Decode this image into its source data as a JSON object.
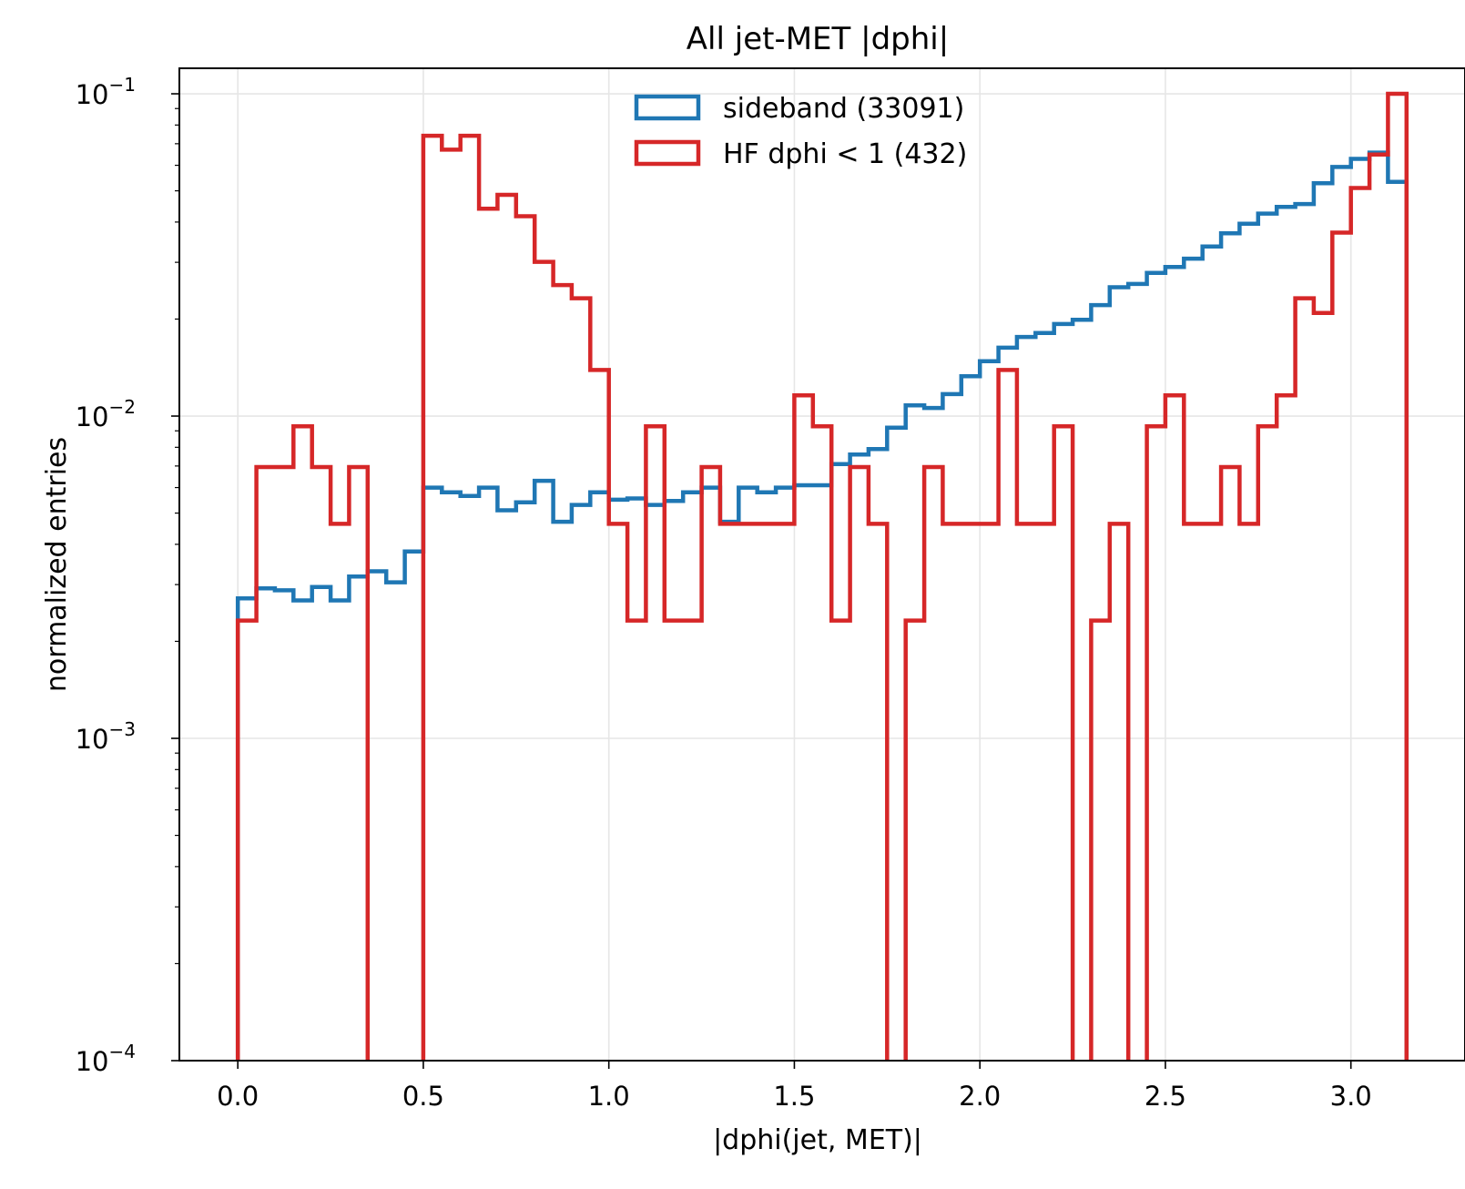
{
  "chart_data": {
    "type": "histogram-step",
    "title": "All jet-MET |dphi|",
    "xlabel": "|dphi(jet, MET)|",
    "ylabel": "normalized entries",
    "yscale": "log",
    "xlim": [
      -0.1575,
      3.3075
    ],
    "ylim": [
      0.0001,
      0.12
    ],
    "grid": true,
    "legend_position": "upper center",
    "bin_width": 0.05,
    "bin_start": 0.0,
    "x_ticks": [
      {
        "value": 0.0,
        "label": "0.0"
      },
      {
        "value": 0.5,
        "label": "0.5"
      },
      {
        "value": 1.0,
        "label": "1.0"
      },
      {
        "value": 1.5,
        "label": "1.5"
      },
      {
        "value": 2.0,
        "label": "2.0"
      },
      {
        "value": 2.5,
        "label": "2.5"
      },
      {
        "value": 3.0,
        "label": "3.0"
      }
    ],
    "y_ticks": [
      {
        "value": 0.1,
        "base": "10",
        "exp": "−1"
      },
      {
        "value": 0.01,
        "base": "10",
        "exp": "−2"
      },
      {
        "value": 0.001,
        "base": "10",
        "exp": "−3"
      },
      {
        "value": 0.0001,
        "base": "10",
        "exp": "−4"
      }
    ],
    "series": [
      {
        "name": "sideband (33091)",
        "color": "#1f77b4",
        "values": [
          0.00272,
          0.00292,
          0.00288,
          0.00268,
          0.00295,
          0.00268,
          0.00318,
          0.0033,
          0.00305,
          0.0038,
          0.006,
          0.0058,
          0.00565,
          0.006,
          0.0051,
          0.0054,
          0.0063,
          0.0047,
          0.0053,
          0.0058,
          0.0055,
          0.00555,
          0.0053,
          0.00545,
          0.0058,
          0.006,
          0.0047,
          0.006,
          0.0058,
          0.006,
          0.0061,
          0.0061,
          0.0071,
          0.0076,
          0.0079,
          0.0092,
          0.0108,
          0.0106,
          0.0117,
          0.0133,
          0.0148,
          0.0163,
          0.0176,
          0.0181,
          0.0193,
          0.0199,
          0.0221,
          0.0251,
          0.0257,
          0.0278,
          0.029,
          0.0308,
          0.0336,
          0.0369,
          0.0395,
          0.0425,
          0.0446,
          0.0455,
          0.0528,
          0.0593,
          0.0628,
          0.0657,
          0.0533
        ]
      },
      {
        "name": "HF dphi < 1 (432)",
        "color": "#d62728",
        "values": [
          0.00232,
          0.00695,
          0.00695,
          0.0093,
          0.00695,
          0.00463,
          0.00695,
          0.0,
          0.0,
          0.0,
          0.0741,
          0.0671,
          0.0741,
          0.044,
          0.0486,
          0.0417,
          0.0301,
          0.0255,
          0.0232,
          0.0139,
          0.00463,
          0.00232,
          0.0093,
          0.00232,
          0.00232,
          0.00695,
          0.00463,
          0.00463,
          0.00463,
          0.00463,
          0.0116,
          0.0093,
          0.00232,
          0.00695,
          0.00463,
          0.0,
          0.00232,
          0.00695,
          0.00463,
          0.00463,
          0.00463,
          0.0139,
          0.00463,
          0.00463,
          0.0093,
          0.0,
          0.00232,
          0.00463,
          0.0,
          0.0093,
          0.0116,
          0.00463,
          0.00463,
          0.00695,
          0.00463,
          0.0093,
          0.0116,
          0.0232,
          0.0209,
          0.0371,
          0.051,
          0.0648,
          0.1
        ]
      }
    ]
  }
}
